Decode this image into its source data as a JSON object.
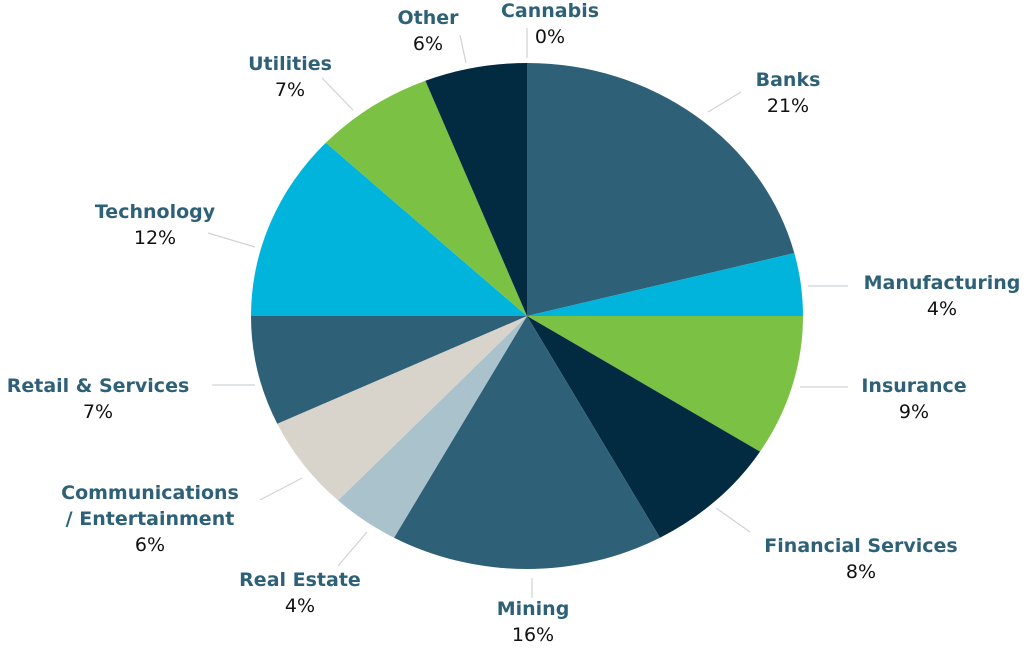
{
  "chart_data": {
    "type": "pie",
    "title": "",
    "start_angle_deg": 0,
    "direction": "clockwise",
    "center": [
      527,
      316
    ],
    "radius": [
      276,
      253
    ],
    "slices": [
      {
        "label": "Cannabis",
        "pct_label": "0%",
        "value": 0,
        "color": "#2e6178"
      },
      {
        "label": "Banks",
        "pct_label": "21%",
        "value": 21,
        "color": "#2e6178"
      },
      {
        "label": "Manufacturing",
        "pct_label": "4%",
        "value": 4,
        "color": "#00b4dc"
      },
      {
        "label": "Insurance",
        "pct_label": "9%",
        "value": 9,
        "color": "#7bc143"
      },
      {
        "label": "Financial Services",
        "pct_label": "8%",
        "value": 8,
        "color": "#022b42"
      },
      {
        "label": "Mining",
        "pct_label": "16%",
        "value": 16,
        "color": "#2e6178"
      },
      {
        "label": "Real Estate",
        "pct_label": "4%",
        "value": 4,
        "color": "#aac2cc"
      },
      {
        "label": "Communications / Entertainment",
        "pct_label": "6%",
        "value": 6,
        "color": "#d8d4cc"
      },
      {
        "label": "Retail & Services",
        "pct_label": "7%",
        "value": 7,
        "color": "#2e6178"
      },
      {
        "label": "Technology",
        "pct_label": "12%",
        "value": 12,
        "color": "#00b4dc"
      },
      {
        "label": "Utilities",
        "pct_label": "7%",
        "value": 7,
        "color": "#7bc143"
      },
      {
        "label": "Other",
        "pct_label": "6%",
        "value": 6,
        "color": "#022b42"
      }
    ],
    "legend": "none (labels placed around pie with leader lines)"
  },
  "labels": {
    "cannabis": {
      "name": "Cannabis",
      "pct": "0%"
    },
    "banks": {
      "name": "Banks",
      "pct": "21%"
    },
    "manufacturing": {
      "name": "Manufacturing",
      "pct": "4%"
    },
    "insurance": {
      "name": "Insurance",
      "pct": "9%"
    },
    "financial": {
      "name": "Financial Services",
      "pct": "8%"
    },
    "mining": {
      "name": "Mining",
      "pct": "16%"
    },
    "realestate": {
      "name": "Real Estate",
      "pct": "4%"
    },
    "comms1": "Communications",
    "comms2": "/ Entertainment",
    "comms_pct": "6%",
    "retail": {
      "name": "Retail & Services",
      "pct": "7%"
    },
    "technology": {
      "name": "Technology",
      "pct": "12%"
    },
    "utilities": {
      "name": "Utilities",
      "pct": "7%"
    },
    "other": {
      "name": "Other",
      "pct": "6%"
    }
  }
}
